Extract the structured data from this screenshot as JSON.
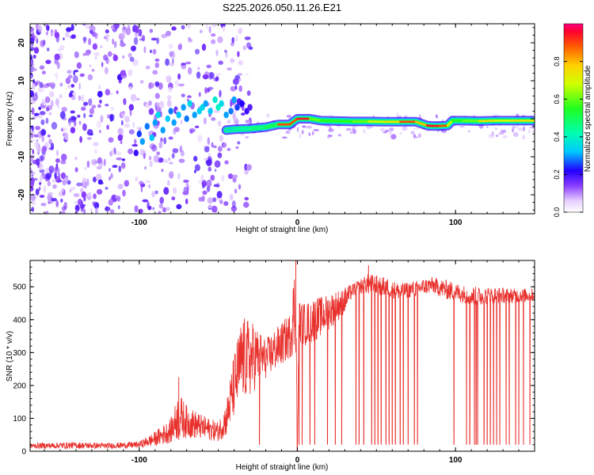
{
  "figure_title": "S225.2026.050.11.26.E21",
  "chart_data": [
    {
      "type": "heatmap",
      "title": "S225.2026.050.11.26.E21",
      "xlabel": "Height of straight line (km)",
      "ylabel": "Frequency (Hz)",
      "xlim": [
        -169,
        150
      ],
      "ylim": [
        -25,
        25
      ],
      "xticks": [
        {
          "value": -100,
          "label": "-100"
        },
        {
          "value": 0,
          "label": "0"
        },
        {
          "value": 100,
          "label": "100"
        }
      ],
      "yticks": [
        {
          "value": 20,
          "label": "20"
        },
        {
          "value": 10,
          "label": "10"
        },
        {
          "value": 0,
          "label": "0"
        },
        {
          "value": -10,
          "label": "-10"
        },
        {
          "value": -20,
          "label": "-20"
        }
      ],
      "colorbar": {
        "label": "Normalized spectral amplitude",
        "range": [
          0,
          1
        ],
        "ticks": [
          {
            "value": 0.0,
            "label": "0.0"
          },
          {
            "value": 0.2,
            "label": "0.2"
          },
          {
            "value": 0.4,
            "label": "0.4"
          },
          {
            "value": 0.6,
            "label": "0.6"
          },
          {
            "value": 0.8,
            "label": "0.8"
          }
        ]
      },
      "ridge": {
        "description_values": "dominant frequency (Hz) vs height (km)",
        "x": [
          -45,
          -40,
          -30,
          -20,
          -12,
          -5,
          0,
          8,
          15,
          25,
          35,
          45,
          55,
          65,
          75,
          82,
          85,
          90,
          95,
          98,
          105,
          115,
          125,
          135,
          150
        ],
        "freq": [
          -3,
          -2.8,
          -2.6,
          -2.2,
          -1.5,
          -1.5,
          0,
          0,
          -0.5,
          -0.6,
          -0.7,
          -0.7,
          -0.8,
          -0.8,
          -0.8,
          -1.8,
          -1.9,
          -1.9,
          -1.8,
          -0.5,
          -0.5,
          -0.6,
          -0.5,
          -0.5,
          -0.5
        ],
        "amplitude": [
          0.35,
          0.4,
          0.45,
          0.5,
          0.9,
          0.9,
          0.95,
          0.6,
          0.55,
          0.55,
          0.6,
          0.7,
          0.75,
          0.9,
          0.8,
          0.95,
          0.95,
          0.9,
          0.7,
          0.55,
          0.6,
          0.75,
          0.7,
          0.75,
          0.75
        ]
      },
      "scatter_blobs": {
        "description_values": "centers of low-amplitude spectral energy patches (height km, frequency Hz, amplitude)",
        "x": [
          -165,
          -160,
          -158,
          -152,
          -148,
          -145,
          -142,
          -138,
          -135,
          -130,
          -128,
          -125,
          -120,
          -118,
          -115,
          -112,
          -110,
          -108,
          -105,
          -102,
          -100,
          -98,
          -95,
          -92,
          -90,
          -88,
          -85,
          -82,
          -80,
          -78,
          -75,
          -72,
          -70,
          -68,
          -65,
          -62,
          -60,
          -58,
          -55,
          -52,
          -50,
          -48,
          -45,
          -42,
          -40,
          -38,
          -35,
          -32,
          -30
        ],
        "freq": [
          18,
          -8,
          5,
          22,
          -15,
          10,
          -3,
          14,
          -20,
          2,
          19,
          -11,
          7,
          -22,
          16,
          -5,
          12,
          -17,
          3,
          -9,
          -4,
          -6,
          -2,
          -5,
          -1,
          1,
          -3,
          0,
          2,
          -1,
          1,
          3,
          0,
          4,
          1,
          2,
          3,
          4,
          2,
          5,
          3,
          4,
          1,
          2,
          5,
          3,
          4,
          2,
          3
        ],
        "amplitude": [
          0.15,
          0.12,
          0.1,
          0.14,
          0.13,
          0.11,
          0.15,
          0.12,
          0.14,
          0.1,
          0.13,
          0.11,
          0.12,
          0.1,
          0.14,
          0.15,
          0.13,
          0.12,
          0.16,
          0.2,
          0.25,
          0.3,
          0.28,
          0.32,
          0.3,
          0.35,
          0.3,
          0.33,
          0.28,
          0.3,
          0.32,
          0.3,
          0.28,
          0.35,
          0.3,
          0.33,
          0.35,
          0.3,
          0.32,
          0.38,
          0.4,
          0.35,
          0.3,
          0.28,
          0.3,
          0.25,
          0.22,
          0.2,
          0.18
        ]
      }
    },
    {
      "type": "line",
      "title": "",
      "xlabel": "Height of straight line (km)",
      "ylabel": "SNR (10 * v/v)",
      "xlim": [
        -169,
        150
      ],
      "ylim": [
        0,
        580
      ],
      "color": "#e8302c",
      "xticks": [
        {
          "value": -100,
          "label": "-100"
        },
        {
          "value": 0,
          "label": "0"
        },
        {
          "value": 100,
          "label": "100"
        }
      ],
      "yticks": [
        {
          "value": 0,
          "label": "0"
        },
        {
          "value": 100,
          "label": "100"
        },
        {
          "value": 200,
          "label": "200"
        },
        {
          "value": 300,
          "label": "300"
        },
        {
          "value": 400,
          "label": "400"
        },
        {
          "value": 500,
          "label": "500"
        }
      ],
      "envelope": {
        "description_values": "approximate SNR envelope vs height (km): lower and upper bound of the dense trace",
        "x": [
          -169,
          -140,
          -120,
          -100,
          -90,
          -80,
          -75,
          -70,
          -60,
          -50,
          -45,
          -40,
          -35,
          -30,
          -25,
          -20,
          -15,
          -10,
          -5,
          -1,
          0,
          1,
          5,
          10,
          15,
          20,
          25,
          30,
          35,
          45,
          55,
          65,
          75,
          85,
          95,
          105,
          115,
          125,
          135,
          150
        ],
        "lower": [
          8,
          8,
          8,
          10,
          15,
          25,
          35,
          40,
          35,
          30,
          45,
          100,
          150,
          160,
          200,
          220,
          240,
          260,
          280,
          300,
          0,
          320,
          320,
          330,
          350,
          370,
          390,
          420,
          470,
          480,
          470,
          460,
          470,
          480,
          460,
          450,
          440,
          450,
          450,
          455
        ],
        "upper": [
          25,
          28,
          25,
          30,
          60,
          100,
          180,
          140,
          110,
          90,
          150,
          300,
          410,
          400,
          380,
          340,
          370,
          390,
          420,
          600,
          0,
          460,
          450,
          470,
          470,
          480,
          490,
          500,
          510,
          540,
          530,
          510,
          520,
          530,
          520,
          505,
          500,
          500,
          495,
          495
        ]
      },
      "dropout_heights": [
        -24,
        1,
        3,
        8,
        11,
        19,
        24,
        28,
        37,
        39,
        42,
        47,
        49,
        51,
        53,
        56,
        58,
        60,
        62,
        65,
        67,
        70,
        74,
        76,
        99,
        107,
        109,
        112,
        113,
        114,
        118,
        120,
        122,
        124,
        126,
        128,
        132,
        134,
        138,
        140,
        143,
        147
      ],
      "dropout_floor": 20,
      "spikes": [
        {
          "x": -1,
          "y": 580
        },
        {
          "x": 45,
          "y": 565
        },
        {
          "x": -75,
          "y": 225
        }
      ]
    }
  ]
}
